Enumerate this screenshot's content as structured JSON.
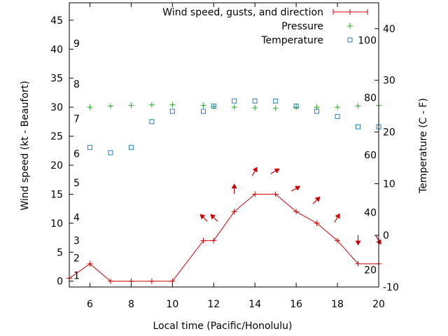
{
  "chart_data": {
    "type": "line",
    "xlabel": "Local time (Pacific/Honolulu)",
    "ylabel_left": "Wind speed (kt - Beaufort)",
    "ylabel_right": "Temperature (C - F)",
    "xlim": [
      5,
      20
    ],
    "x_ticks": [
      6,
      8,
      10,
      12,
      14,
      16,
      18,
      20
    ],
    "y_left_lim": [
      -1,
      48
    ],
    "y_left_ticks": [
      0,
      5,
      10,
      15,
      20,
      25,
      30,
      35,
      40,
      45
    ],
    "beaufort_labels": [
      {
        "label": "1",
        "at": 1
      },
      {
        "label": "2",
        "at": 4
      },
      {
        "label": "3",
        "at": 7
      },
      {
        "label": "4",
        "at": 11
      },
      {
        "label": "5",
        "at": 17
      },
      {
        "label": "6",
        "at": 22
      },
      {
        "label": "7",
        "at": 28
      },
      {
        "label": "8",
        "at": 34
      },
      {
        "label": "9",
        "at": 41
      }
    ],
    "y_right_lim": [
      -10,
      45
    ],
    "y_right_ticks": [
      -10,
      0,
      10,
      20,
      30,
      40
    ],
    "fahrenheit_labels": [
      {
        "label": "20",
        "at": 20
      },
      {
        "label": "40",
        "at": 40
      },
      {
        "label": "60",
        "at": 60
      },
      {
        "label": "80",
        "at": 80
      },
      {
        "label": "100",
        "at": 100
      }
    ],
    "legend": {
      "position": "top-right",
      "entries": [
        "Wind speed, gusts, and direction",
        "Pressure",
        "Temperature"
      ]
    },
    "colors": {
      "wind": "#cc0000",
      "pressure": "#22aa22",
      "temperature": "#1f7fc8"
    },
    "series": [
      {
        "name": "Wind speed, gusts, and direction",
        "style": "line-points",
        "x": [
          5,
          6,
          7,
          8,
          9,
          10,
          11.5,
          12,
          13,
          14,
          15,
          16,
          17,
          18,
          19,
          20
        ],
        "y": [
          0.5,
          3,
          0,
          0,
          0,
          0,
          7,
          7,
          12,
          15,
          15,
          12,
          10,
          7,
          3,
          3
        ]
      },
      {
        "name": "Pressure",
        "style": "plus",
        "x": [
          6,
          7,
          8,
          9,
          10,
          11.5,
          12,
          13,
          14,
          15,
          16,
          17,
          18,
          19,
          20
        ],
        "y": [
          30.0,
          30.2,
          30.3,
          30.4,
          30.4,
          30.3,
          30.1,
          30.0,
          29.9,
          29.8,
          30.0,
          30.0,
          30.0,
          30.2,
          30.3
        ]
      },
      {
        "name": "Temperature",
        "style": "square",
        "axis": "right",
        "x": [
          6,
          7,
          8,
          9,
          10,
          11.5,
          12,
          13,
          14,
          15,
          16,
          17,
          18,
          19,
          20
        ],
        "y": [
          17,
          16,
          17,
          22,
          24,
          24,
          25,
          26,
          26,
          26,
          25,
          24,
          23,
          21,
          21
        ]
      }
    ],
    "wind_direction": {
      "x": [
        11.5,
        12,
        13,
        14,
        15,
        16,
        17,
        18,
        19,
        20
      ],
      "y": [
        11,
        11,
        16,
        19,
        19,
        16,
        14,
        11,
        7,
        7
      ],
      "direction_deg": [
        225,
        225,
        270,
        300,
        330,
        330,
        315,
        300,
        90,
        60
      ]
    }
  }
}
